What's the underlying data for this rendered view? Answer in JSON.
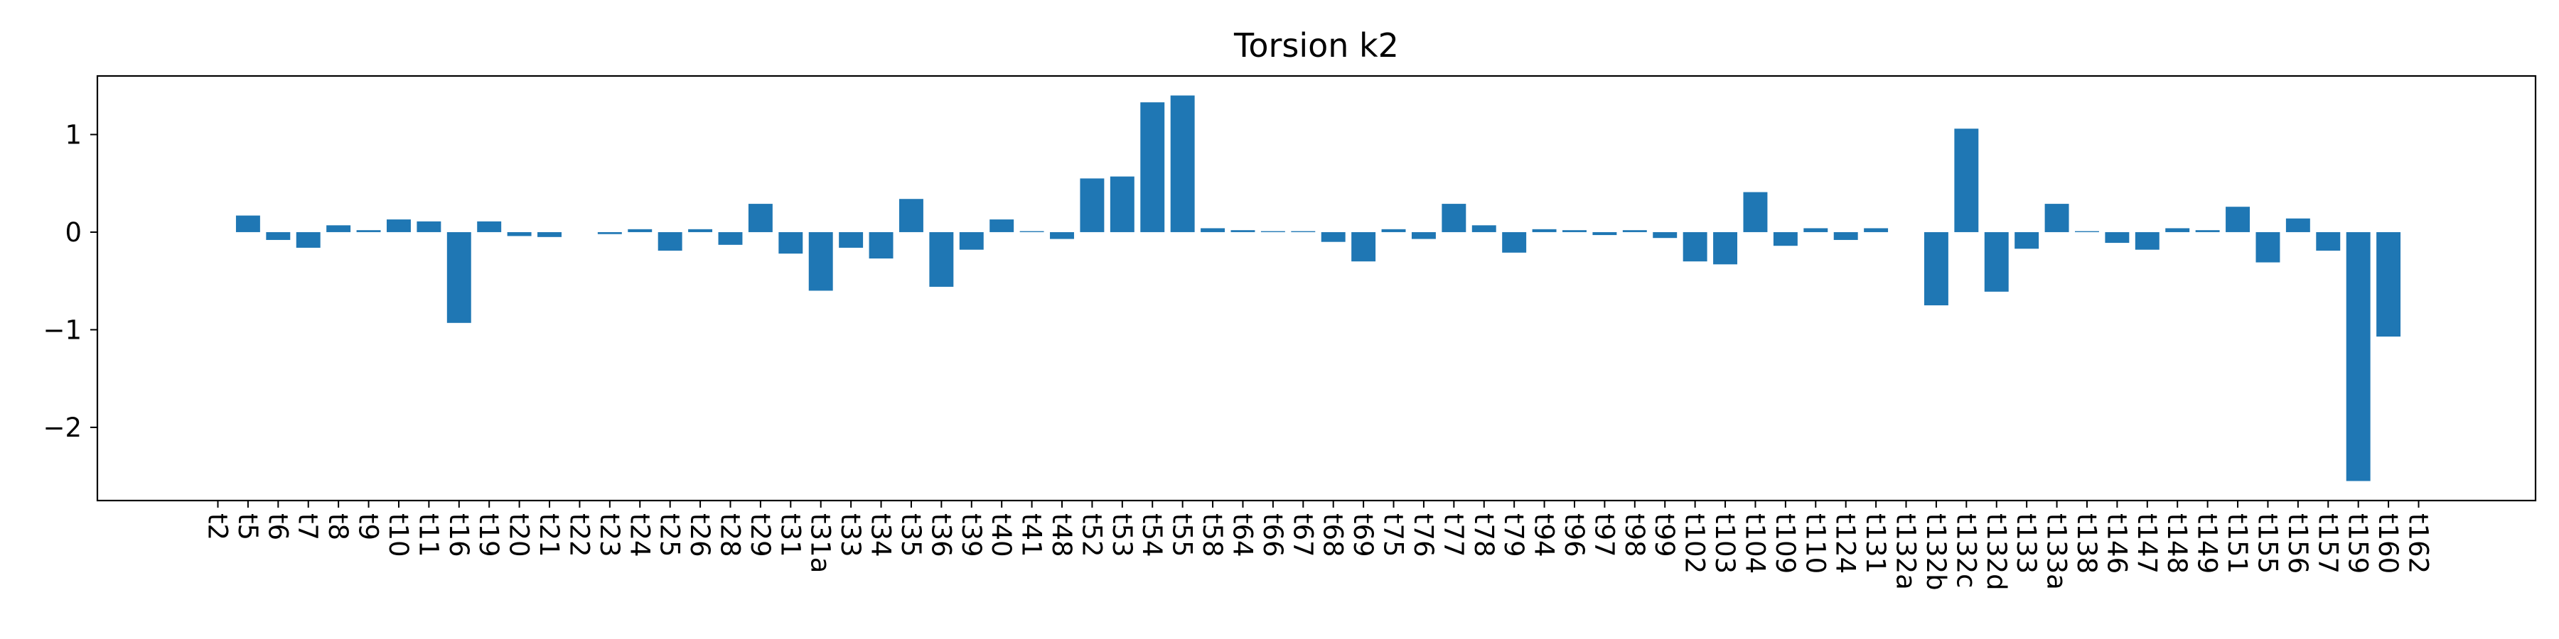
{
  "chart_data": {
    "type": "bar",
    "title": "Torsion k2",
    "xlabel": "",
    "ylabel": "",
    "ylim": [
      -2.75,
      1.6
    ],
    "yticks": [
      1,
      0,
      -1,
      -2
    ],
    "ytick_labels": [
      "1",
      "0",
      "−1",
      "−2"
    ],
    "grid": false,
    "bar_color": "#1f77b4",
    "categories": [
      "t2",
      "t5",
      "t6",
      "t7",
      "t8",
      "t9",
      "t10",
      "t11",
      "t16",
      "t19",
      "t20",
      "t21",
      "t22",
      "t23",
      "t24",
      "t25",
      "t26",
      "t28",
      "t29",
      "t31",
      "t31a",
      "t33",
      "t34",
      "t35",
      "t36",
      "t39",
      "t40",
      "t41",
      "t48",
      "t52",
      "t53",
      "t54",
      "t55",
      "t58",
      "t64",
      "t66",
      "t67",
      "t68",
      "t69",
      "t75",
      "t76",
      "t77",
      "t78",
      "t79",
      "t94",
      "t96",
      "t97",
      "t98",
      "t99",
      "t102",
      "t103",
      "t104",
      "t109",
      "t110",
      "t124",
      "t131",
      "t132a",
      "t132b",
      "t132c",
      "t132d",
      "t133",
      "t133a",
      "t138",
      "t146",
      "t147",
      "t148",
      "t149",
      "t151",
      "t155",
      "t156",
      "t157",
      "t159",
      "t160",
      "t162"
    ],
    "values": [
      0.0,
      0.17,
      -0.08,
      -0.16,
      0.07,
      0.02,
      0.13,
      0.11,
      -0.93,
      0.11,
      -0.04,
      -0.05,
      0.0,
      -0.02,
      0.03,
      -0.19,
      0.03,
      -0.13,
      0.29,
      -0.22,
      -0.6,
      -0.16,
      -0.27,
      0.34,
      -0.56,
      -0.18,
      0.13,
      0.01,
      -0.07,
      0.55,
      0.57,
      1.33,
      1.4,
      0.04,
      0.02,
      0.01,
      0.01,
      -0.1,
      -0.3,
      0.03,
      -0.07,
      0.29,
      0.07,
      -0.21,
      0.03,
      0.02,
      -0.03,
      0.02,
      -0.06,
      -0.3,
      -0.33,
      0.41,
      -0.14,
      0.04,
      -0.08,
      0.04,
      0.0,
      -0.75,
      1.06,
      -0.61,
      -0.17,
      0.29,
      0.01,
      -0.11,
      -0.18,
      0.04,
      0.02,
      0.26,
      -0.31,
      0.14,
      -0.19,
      -2.55,
      -1.07,
      0.0
    ]
  }
}
